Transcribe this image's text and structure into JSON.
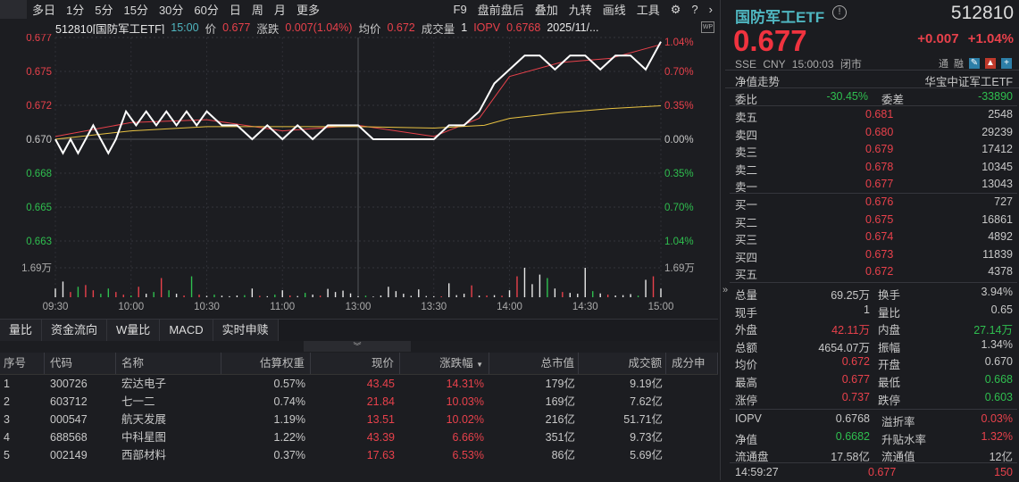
{
  "toolbar": {
    "items": [
      "多日",
      "1分",
      "5分",
      "15分",
      "30分",
      "60分",
      "日",
      "周",
      "月",
      "更多"
    ],
    "right": [
      "F9",
      "盘前盘后",
      "叠加",
      "九转",
      "画线",
      "工具"
    ],
    "icons": [
      "gear-icon",
      "help-icon",
      "chevron-right-icon"
    ]
  },
  "chart_header": {
    "title": "512810[国防军工ETF]",
    "time": "15:00",
    "price_label": "价",
    "price": "0.677",
    "change_label": "涨跌",
    "change": "0.007(1.04%)",
    "avg_label": "均价",
    "avg": "0.672",
    "vol_label": "成交量",
    "vol": "1",
    "iopv_label": "IOPV",
    "iopv": "0.6768",
    "date": "2025/11/..."
  },
  "chart_data": {
    "type": "line",
    "prev_close": 0.67,
    "ylim": [
      0.6627,
      0.6773
    ],
    "y_ticks_left": [
      "0.677",
      "0.675",
      "0.672",
      "0.670",
      "0.668",
      "0.665",
      "0.663"
    ],
    "y_ticks_right": [
      "1.04%",
      "0.70%",
      "0.35%",
      "0.00%",
      "0.35%",
      "0.70%",
      "1.04%"
    ],
    "x_ticks": [
      "09:30",
      "10:00",
      "10:30",
      "11:00",
      "13:00",
      "13:30",
      "14:00",
      "14:30",
      "15:00"
    ],
    "volume_label": "1.69万",
    "volume_max": 16900,
    "series": [
      {
        "color": "#ffffff",
        "points": [
          [
            0,
            0.67
          ],
          [
            3,
            0.669
          ],
          [
            6,
            0.67
          ],
          [
            9,
            0.669
          ],
          [
            12,
            0.67
          ],
          [
            15,
            0.671
          ],
          [
            18,
            0.67
          ],
          [
            21,
            0.669
          ],
          [
            24,
            0.67
          ],
          [
            26,
            0.671
          ],
          [
            28,
            0.672
          ],
          [
            32,
            0.671
          ],
          [
            36,
            0.672
          ],
          [
            40,
            0.671
          ],
          [
            44,
            0.672
          ],
          [
            48,
            0.671
          ],
          [
            52,
            0.672
          ],
          [
            56,
            0.671
          ],
          [
            60,
            0.672
          ],
          [
            66,
            0.671
          ],
          [
            72,
            0.671
          ],
          [
            78,
            0.67
          ],
          [
            84,
            0.671
          ],
          [
            90,
            0.67
          ],
          [
            96,
            0.671
          ],
          [
            102,
            0.67
          ],
          [
            108,
            0.671
          ],
          [
            114,
            0.671
          ],
          [
            120,
            0.671
          ],
          [
            126,
            0.67
          ],
          [
            132,
            0.67
          ],
          [
            138,
            0.67
          ],
          [
            144,
            0.67
          ],
          [
            150,
            0.67
          ],
          [
            156,
            0.671
          ],
          [
            162,
            0.671
          ],
          [
            168,
            0.672
          ],
          [
            174,
            0.674
          ],
          [
            180,
            0.675
          ],
          [
            186,
            0.676
          ],
          [
            192,
            0.676
          ],
          [
            198,
            0.675
          ],
          [
            204,
            0.676
          ],
          [
            210,
            0.676
          ],
          [
            216,
            0.675
          ],
          [
            222,
            0.676
          ],
          [
            228,
            0.676
          ],
          [
            234,
            0.675
          ],
          [
            240,
            0.677
          ]
        ]
      },
      {
        "color": "#e8c242",
        "points": [
          [
            0,
            0.67
          ],
          [
            30,
            0.6706
          ],
          [
            60,
            0.6709
          ],
          [
            120,
            0.6709
          ],
          [
            150,
            0.6708
          ],
          [
            170,
            0.671
          ],
          [
            180,
            0.6715
          ],
          [
            200,
            0.6719
          ],
          [
            220,
            0.6722
          ],
          [
            240,
            0.6724
          ]
        ]
      },
      {
        "color": "#e8414b",
        "points": [
          [
            0,
            0.6702
          ],
          [
            30,
            0.6712
          ],
          [
            60,
            0.6714
          ],
          [
            90,
            0.6706
          ],
          [
            120,
            0.671
          ],
          [
            150,
            0.6702
          ],
          [
            168,
            0.6715
          ],
          [
            180,
            0.6745
          ],
          [
            200,
            0.6755
          ],
          [
            220,
            0.6758
          ],
          [
            240,
            0.6768
          ]
        ]
      }
    ],
    "volume": [
      5000,
      9000,
      3000,
      6000,
      7000,
      4000,
      2000,
      5000,
      3000,
      1500,
      1000,
      6000,
      2000,
      3000,
      11000,
      4000,
      2000,
      1000,
      12000,
      1500,
      800,
      1500,
      900,
      600,
      1000,
      1200,
      5000,
      800,
      600,
      1500,
      4000,
      1000,
      700,
      2500,
      1500,
      900,
      4800,
      3000,
      3800,
      2200,
      600,
      900,
      400,
      1000,
      6000,
      3500,
      2000,
      800,
      4500,
      700,
      600,
      500,
      8000,
      1200,
      2000,
      6800,
      900,
      1000,
      1200,
      900,
      4000,
      12000,
      16900,
      7500,
      13000,
      11000,
      5000,
      3000,
      2500,
      2000,
      16900,
      3500,
      2200,
      1500,
      1000,
      1200,
      1800,
      900,
      10000,
      12000,
      5000
    ]
  },
  "tabs": [
    "量比",
    "资金流向",
    "W量比",
    "MACD",
    "实时申赎"
  ],
  "collapse_icon": "double-chevron-down-icon",
  "table": {
    "headers": [
      "序号",
      "代码",
      "名称",
      "估算权重",
      "现价",
      "涨跌幅",
      "总市值",
      "成交额",
      "成分申"
    ],
    "sort_icon": "▼",
    "rows": [
      [
        "1",
        "300726",
        "宏达电子",
        "0.57%",
        "43.45",
        "14.31%",
        "179亿",
        "9.19亿"
      ],
      [
        "2",
        "603712",
        "七一二",
        "0.74%",
        "21.84",
        "10.03%",
        "169亿",
        "7.62亿"
      ],
      [
        "3",
        "000547",
        "航天发展",
        "1.19%",
        "13.51",
        "10.02%",
        "216亿",
        "51.71亿"
      ],
      [
        "4",
        "688568",
        "中科星图",
        "1.22%",
        "43.39",
        "6.66%",
        "351亿",
        "9.73亿"
      ],
      [
        "5",
        "002149",
        "西部材料",
        "0.37%",
        "17.63",
        "6.53%",
        "86亿",
        "5.69亿"
      ]
    ]
  },
  "quote": {
    "name": "国防军工ETF",
    "code": "512810",
    "price": "0.677",
    "change": "+0.007",
    "pct": "+1.04%",
    "meta": "SSE  CNY  15:00:03  闭市",
    "badges": [
      "通",
      "融"
    ],
    "nav_trend": "净值走势",
    "fund_name": "华宝中证军工ETF",
    "weibi_label": "委比",
    "weibi": "-30.45%",
    "weicha_label": "委差",
    "weicha": "-33890",
    "asks": [
      [
        "卖五",
        "0.681",
        "2548"
      ],
      [
        "卖四",
        "0.680",
        "29239"
      ],
      [
        "卖三",
        "0.679",
        "17412"
      ],
      [
        "卖二",
        "0.678",
        "10345"
      ],
      [
        "卖一",
        "0.677",
        "13043"
      ]
    ],
    "bids": [
      [
        "买一",
        "0.676",
        "727"
      ],
      [
        "买二",
        "0.675",
        "16861"
      ],
      [
        "买三",
        "0.674",
        "4892"
      ],
      [
        "买四",
        "0.673",
        "11839"
      ],
      [
        "买五",
        "0.672",
        "4378"
      ]
    ],
    "stats": [
      [
        "总量",
        "69.25万",
        "",
        "换手",
        "3.94%",
        ""
      ],
      [
        "现手",
        "1",
        "",
        "量比",
        "0.65",
        ""
      ],
      [
        "外盘",
        "42.11万",
        "red",
        "内盘",
        "27.14万",
        "green"
      ],
      [
        "总额",
        "4654.07万",
        "",
        "振幅",
        "1.34%",
        ""
      ],
      [
        "均价",
        "0.672",
        "red",
        "开盘",
        "0.670",
        ""
      ],
      [
        "最高",
        "0.677",
        "red",
        "最低",
        "0.668",
        "green"
      ],
      [
        "涨停",
        "0.737",
        "red",
        "跌停",
        "0.603",
        "green"
      ]
    ],
    "etf": [
      [
        "IOPV",
        "0.6768",
        "",
        "溢折率",
        "0.03%",
        "red"
      ],
      [
        "净值",
        "0.6682",
        "green",
        "升贴水率",
        "1.32%",
        "red"
      ],
      [
        "流通盘",
        "17.58亿",
        "",
        "流通值",
        "12亿",
        ""
      ]
    ],
    "tick": {
      "time": "14:59:27",
      "price": "0.677",
      "vol": "150"
    }
  },
  "colors": {
    "up": "#e8414b",
    "down": "#2fbf4f",
    "accent": "#4fb6c0"
  }
}
